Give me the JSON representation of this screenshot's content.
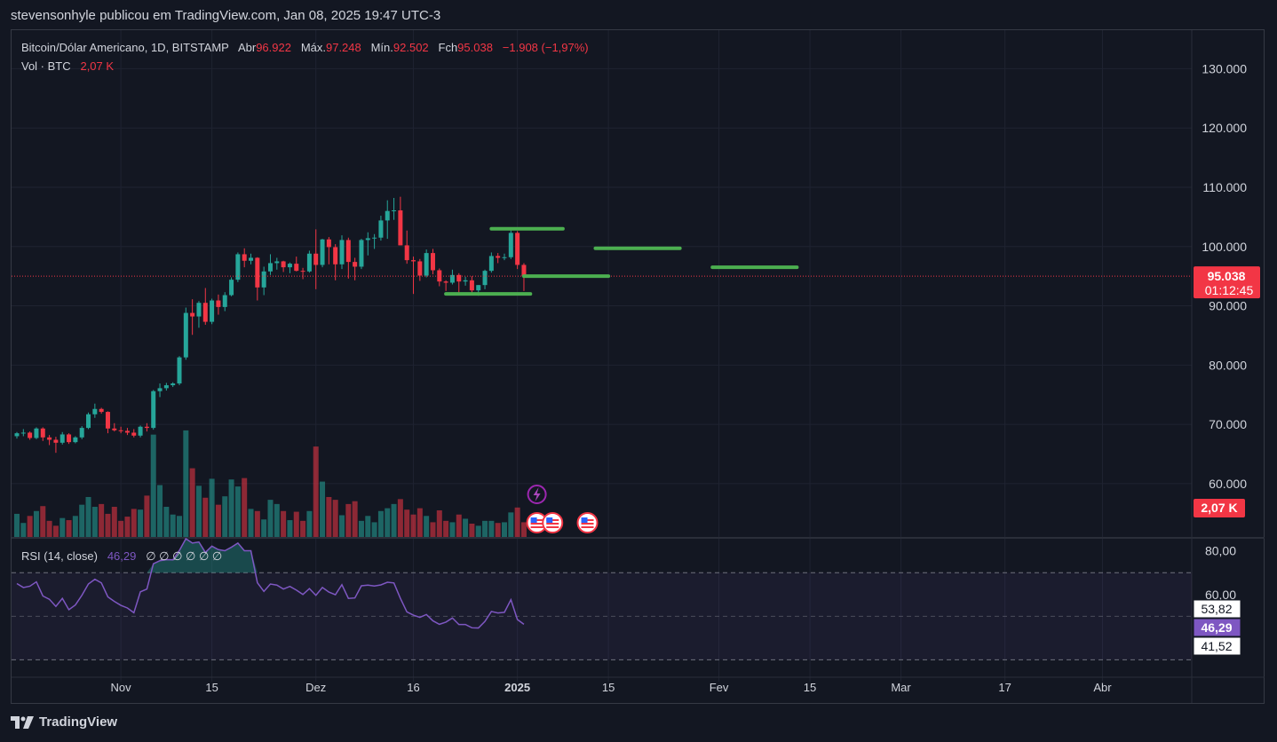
{
  "header": {
    "caption": "stevensonhyle publicou em TradingView.com, Jan 08, 2025 19:47 UTC-3"
  },
  "legend": {
    "symbol": "Bitcoin/Dólar Americano, 1D, BITSTAMP",
    "open_label": "Abr",
    "open": "96.922",
    "high_label": "Máx.",
    "high": "97.248",
    "low_label": "Mín.",
    "low": "92.502",
    "close_label": "Fch",
    "close": "95.038",
    "change": "−1.908 (−1,97%)"
  },
  "volume_legend": {
    "label": "Vol · BTC",
    "value": "2,07 K"
  },
  "rsi_legend": {
    "label": "RSI (14, close)",
    "value": "46,29",
    "extras": "∅ ∅ ∅ ∅ ∅ ∅"
  },
  "price_badge": {
    "price": "95.038",
    "countdown": "01:12:45"
  },
  "volume_badge": "2,07 K",
  "rsi_badges": {
    "upper": "53,82",
    "current": "46,29",
    "lower": "41,52"
  },
  "footer": {
    "brand": "TradingView",
    "logo": "tradingview-logo-icon"
  },
  "colors": {
    "up": "#26a69a",
    "down": "#f23645",
    "rsi": "#7e57c2",
    "drawing": "#4caf50",
    "background": "#131722"
  },
  "chart_data": {
    "type": "candlestick",
    "price_axis": {
      "ticks": [
        "130.000",
        "120.000",
        "110.000",
        "100.000",
        "90.000",
        "80.000",
        "70.000",
        "60.000"
      ],
      "values": [
        130000,
        120000,
        110000,
        100000,
        90000,
        80000,
        70000,
        60000
      ],
      "ylim": [
        51000,
        136500
      ]
    },
    "rsi_axis": {
      "ticks": [
        "80,00",
        "60,00"
      ],
      "values": [
        80,
        60
      ],
      "band": [
        70,
        30
      ],
      "ylim": [
        22,
        86
      ]
    },
    "x_axis_labels": [
      {
        "label": "Nov",
        "i": 16
      },
      {
        "label": "15",
        "i": 30
      },
      {
        "label": "Dez",
        "i": 46
      },
      {
        "label": "16",
        "i": 61
      },
      {
        "label": "2025",
        "i": 77,
        "bold": true
      },
      {
        "label": "15",
        "i": 91
      },
      {
        "label": "Fev",
        "i": 108
      },
      {
        "label": "15",
        "i": 122
      },
      {
        "label": "Mar",
        "i": 136
      },
      {
        "label": "17",
        "i": 152
      },
      {
        "label": "Abr",
        "i": 167
      }
    ],
    "candles": [
      [
        68.0,
        68.7,
        67.6,
        68.5
      ],
      [
        68.5,
        69.2,
        68.0,
        68.6
      ],
      [
        68.6,
        68.8,
        67.4,
        67.7
      ],
      [
        67.7,
        69.5,
        67.5,
        69.3
      ],
      [
        69.3,
        69.5,
        67.2,
        67.8
      ],
      [
        67.8,
        68.2,
        66.5,
        67.4
      ],
      [
        67.4,
        67.9,
        65.2,
        66.9
      ],
      [
        66.9,
        68.7,
        66.6,
        68.3
      ],
      [
        68.3,
        68.5,
        66.7,
        67.0
      ],
      [
        67.0,
        68.0,
        66.8,
        67.8
      ],
      [
        67.8,
        69.7,
        67.5,
        69.4
      ],
      [
        69.4,
        72.0,
        69.2,
        71.7
      ],
      [
        71.7,
        73.5,
        71.1,
        72.6
      ],
      [
        72.6,
        72.8,
        71.8,
        72.1
      ],
      [
        72.1,
        72.2,
        68.5,
        69.3
      ],
      [
        69.3,
        70.2,
        68.8,
        69.0
      ],
      [
        69.0,
        69.6,
        68.5,
        68.9
      ],
      [
        68.9,
        69.4,
        68.2,
        68.6
      ],
      [
        68.6,
        69.2,
        67.8,
        68.1
      ],
      [
        68.1,
        69.8,
        67.8,
        69.6
      ],
      [
        69.6,
        70.2,
        68.8,
        69.4
      ],
      [
        69.4,
        75.8,
        69.1,
        75.6
      ],
      [
        75.6,
        76.9,
        74.6,
        76.1
      ],
      [
        76.1,
        77.0,
        75.7,
        76.6
      ],
      [
        76.6,
        77.1,
        76.3,
        76.9
      ],
      [
        76.9,
        81.5,
        76.6,
        81.3
      ],
      [
        81.3,
        89.7,
        80.9,
        88.8
      ],
      [
        88.8,
        91.1,
        85.1,
        88.2
      ],
      [
        88.2,
        90.8,
        86.3,
        90.5
      ],
      [
        90.5,
        93.0,
        86.8,
        87.3
      ],
      [
        87.3,
        91.2,
        86.9,
        90.9
      ],
      [
        90.9,
        91.9,
        88.5,
        89.8
      ],
      [
        89.8,
        92.3,
        89.1,
        91.8
      ],
      [
        91.8,
        94.8,
        91.6,
        94.4
      ],
      [
        94.4,
        99.0,
        94.0,
        98.7
      ],
      [
        98.7,
        99.7,
        96.5,
        97.6
      ],
      [
        97.6,
        98.8,
        97.0,
        98.1
      ],
      [
        98.1,
        98.2,
        90.9,
        93.1
      ],
      [
        93.1,
        96.6,
        91.8,
        95.8
      ],
      [
        95.8,
        98.7,
        95.2,
        97.2
      ],
      [
        97.2,
        98.1,
        96.1,
        97.5
      ],
      [
        97.5,
        97.6,
        95.7,
        96.5
      ],
      [
        96.5,
        97.3,
        95.5,
        97.1
      ],
      [
        97.1,
        98.3,
        95.8,
        95.9
      ],
      [
        95.9,
        96.4,
        94.5,
        95.8
      ],
      [
        95.8,
        99.3,
        95.6,
        98.8
      ],
      [
        98.8,
        102.9,
        92.8,
        96.9
      ],
      [
        96.9,
        101.3,
        96.5,
        101.2
      ],
      [
        101.2,
        101.6,
        97.0,
        99.9
      ],
      [
        99.9,
        100.4,
        94.3,
        97.0
      ],
      [
        97.0,
        101.9,
        96.2,
        101.1
      ],
      [
        101.1,
        101.5,
        94.6,
        97.4
      ],
      [
        97.4,
        98.1,
        94.3,
        96.6
      ],
      [
        96.6,
        101.3,
        96.2,
        101.1
      ],
      [
        101.1,
        102.4,
        98.5,
        101.4
      ],
      [
        101.4,
        102.1,
        99.6,
        101.5
      ],
      [
        101.5,
        105.2,
        101.0,
        104.4
      ],
      [
        104.4,
        107.8,
        101.3,
        106.0
      ],
      [
        106.0,
        108.2,
        104.5,
        106.1
      ],
      [
        106.1,
        108.4,
        100.2,
        100.2
      ],
      [
        100.2,
        102.7,
        97.1,
        97.7
      ],
      [
        97.7,
        98.3,
        92.0,
        97.5
      ],
      [
        97.5,
        97.9,
        94.2,
        95.1
      ],
      [
        95.1,
        99.5,
        94.8,
        98.9
      ],
      [
        98.9,
        99.6,
        95.3,
        96.0
      ],
      [
        96.0,
        96.3,
        93.3,
        94.1
      ],
      [
        94.1,
        94.3,
        92.5,
        93.9
      ],
      [
        93.9,
        96.1,
        93.6,
        95.2
      ],
      [
        95.2,
        95.5,
        91.9,
        94.1
      ],
      [
        94.1,
        94.9,
        93.4,
        94.3
      ],
      [
        94.3,
        95.0,
        92.2,
        92.6
      ],
      [
        92.6,
        93.5,
        91.7,
        93.5
      ],
      [
        93.5,
        96.1,
        92.8,
        95.9
      ],
      [
        95.9,
        99.0,
        95.6,
        98.4
      ],
      [
        98.4,
        98.9,
        97.2,
        98.1
      ],
      [
        98.1,
        98.8,
        97.7,
        98.2
      ],
      [
        98.2,
        102.7,
        97.9,
        102.3
      ],
      [
        102.3,
        102.6,
        96.2,
        96.9
      ],
      [
        96.9,
        97.2,
        92.5,
        95.0
      ]
    ],
    "volume_k": [
      3.3,
      2.0,
      3.0,
      3.7,
      4.4,
      2.3,
      1.6,
      2.7,
      2.4,
      3.0,
      4.6,
      5.7,
      4.3,
      4.7,
      3.3,
      4.3,
      2.3,
      2.9,
      4.0,
      3.9,
      5.9,
      14.6,
      7.4,
      4.3,
      3.2,
      3.0,
      15.2,
      9.8,
      7.3,
      5.6,
      8.3,
      4.6,
      5.8,
      8.2,
      7.2,
      8.4,
      4.0,
      3.7,
      2.5,
      5.3,
      4.7,
      3.7,
      2.4,
      3.6,
      2.3,
      3.7,
      12.9,
      7.9,
      5.7,
      5.3,
      3.1,
      4.7,
      5.1,
      2.3,
      3.0,
      2.1,
      3.7,
      4.1,
      4.7,
      5.4,
      3.9,
      3.2,
      4.1,
      3.0,
      2.1,
      3.8,
      2.3,
      2.1,
      3.2,
      2.6,
      1.9,
      1.6,
      2.3,
      2.3,
      2.0,
      2.1,
      3.5,
      4.2,
      2.1
    ],
    "rsi": [
      65.0,
      63.2,
      63.8,
      65.8,
      59.3,
      57.8,
      54.5,
      58.2,
      53.0,
      55.2,
      59.6,
      64.8,
      67.0,
      65.3,
      58.9,
      56.8,
      55.0,
      53.8,
      51.6,
      61.2,
      62.5,
      74.1,
      75.5,
      76.0,
      75.9,
      80.2,
      85.6,
      83.6,
      84.1,
      79.3,
      82.2,
      80.6,
      80.1,
      81.7,
      83.6,
      80.1,
      80.1,
      65.4,
      61.4,
      64.8,
      64.3,
      62.5,
      63.7,
      62.0,
      60.0,
      62.7,
      59.6,
      63.2,
      61.1,
      59.9,
      64.5,
      58.2,
      58.4,
      64.0,
      64.3,
      63.9,
      64.4,
      65.6,
      65.3,
      58.2,
      52.0,
      50.5,
      49.5,
      50.8,
      47.9,
      46.3,
      47.3,
      49.2,
      46.2,
      46.2,
      44.7,
      44.6,
      47.6,
      52.2,
      51.5,
      51.8,
      57.6,
      48.5,
      46.3
    ]
  },
  "drawings": [
    {
      "name": "resistance-line-1",
      "i1": 73,
      "i2": 84,
      "price": 103000
    },
    {
      "name": "support-line-1",
      "i1": 78,
      "i2": 91,
      "price": 95000
    },
    {
      "name": "support-line-2",
      "i1": 66,
      "i2": 79,
      "price": 92000
    },
    {
      "name": "target-line-1",
      "i1": 89,
      "i2": 102,
      "price": 99700
    },
    {
      "name": "target-line-2",
      "i1": 107,
      "i2": 120,
      "price": 96500
    }
  ],
  "events": [
    {
      "name": "lightning-event-icon",
      "i": 80
    },
    {
      "name": "us-flag-event-icon-1",
      "i": 80
    },
    {
      "name": "us-flag-event-icon-2",
      "i": 82
    },
    {
      "name": "us-flag-event-icon-3",
      "i": 86
    }
  ]
}
